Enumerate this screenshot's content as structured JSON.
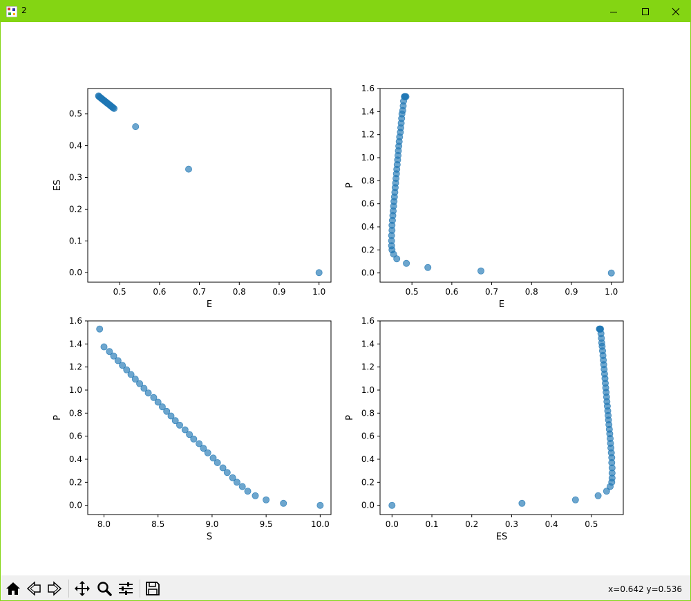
{
  "window": {
    "title": "2",
    "accent_color": "#84d513"
  },
  "toolbar": {
    "items": [
      "home-icon",
      "back-icon",
      "forward-icon",
      "pan-icon",
      "zoom-icon",
      "configure-subplots-icon",
      "save-icon"
    ],
    "coords_text": "x=0.642 y=0.536"
  },
  "chart_data": [
    {
      "type": "scatter",
      "xlabel": "E",
      "ylabel": "ES",
      "xlim": [
        0.42,
        1.03
      ],
      "ylim": [
        -0.03,
        0.58
      ],
      "xticks": [
        "0.5",
        "0.6",
        "0.7",
        "0.8",
        "0.9",
        "1.0"
      ],
      "yticks": [
        "0.0",
        "0.1",
        "0.2",
        "0.3",
        "0.4",
        "0.5"
      ],
      "color": "#1f77b4",
      "x": [
        1.0,
        0.673,
        0.54,
        0.486,
        0.484,
        0.482,
        0.48,
        0.478,
        0.476,
        0.474,
        0.472,
        0.47,
        0.468,
        0.466,
        0.464,
        0.462,
        0.46,
        0.458,
        0.456,
        0.454,
        0.452,
        0.45,
        0.448,
        0.447
      ],
      "y": [
        0.0,
        0.326,
        0.46,
        0.517,
        0.519,
        0.521,
        0.523,
        0.525,
        0.527,
        0.529,
        0.531,
        0.533,
        0.535,
        0.537,
        0.539,
        0.541,
        0.543,
        0.545,
        0.547,
        0.549,
        0.551,
        0.553,
        0.555,
        0.557
      ]
    },
    {
      "type": "scatter",
      "xlabel": "E",
      "ylabel": "P",
      "xlim": [
        0.42,
        1.03
      ],
      "ylim": [
        -0.08,
        1.6
      ],
      "xticks": [
        "0.5",
        "0.6",
        "0.7",
        "0.8",
        "0.9",
        "1.0"
      ],
      "yticks": [
        "0.0",
        "0.2",
        "0.4",
        "0.6",
        "0.8",
        "1.0",
        "1.2",
        "1.4",
        "1.6"
      ],
      "color": "#1f77b4",
      "x": [
        1.0,
        0.673,
        0.54,
        0.486,
        0.462,
        0.454,
        0.45,
        0.449,
        0.449,
        0.449,
        0.45,
        0.45,
        0.451,
        0.452,
        0.453,
        0.454,
        0.455,
        0.456,
        0.457,
        0.458,
        0.459,
        0.46,
        0.461,
        0.462,
        0.463,
        0.464,
        0.465,
        0.466,
        0.467,
        0.468,
        0.469,
        0.471,
        0.472,
        0.473,
        0.474,
        0.475,
        0.477,
        0.478,
        0.479,
        0.481,
        0.482,
        0.483,
        0.485
      ],
      "y": [
        0.0,
        0.017,
        0.047,
        0.083,
        0.123,
        0.163,
        0.2,
        0.236,
        0.28,
        0.325,
        0.37,
        0.413,
        0.455,
        0.497,
        0.538,
        0.58,
        0.62,
        0.66,
        0.7,
        0.74,
        0.78,
        0.82,
        0.86,
        0.9,
        0.94,
        0.98,
        1.02,
        1.06,
        1.1,
        1.14,
        1.18,
        1.22,
        1.26,
        1.3,
        1.34,
        1.38,
        1.41,
        1.45,
        1.49,
        1.53,
        1.53,
        1.53,
        1.53
      ]
    },
    {
      "type": "scatter",
      "xlabel": "S",
      "ylabel": "P",
      "xlim": [
        7.85,
        10.1
      ],
      "ylim": [
        -0.08,
        1.6
      ],
      "xticks": [
        "8.0",
        "8.5",
        "9.0",
        "9.5",
        "10.0"
      ],
      "yticks": [
        "0.0",
        "0.2",
        "0.4",
        "0.6",
        "0.8",
        "1.0",
        "1.2",
        "1.4",
        "1.6"
      ],
      "color": "#1f77b4",
      "x": [
        10.0,
        9.66,
        9.5,
        9.4,
        9.33,
        9.28,
        9.23,
        9.19,
        9.14,
        9.1,
        9.05,
        9.01,
        8.96,
        8.92,
        8.88,
        8.83,
        8.79,
        8.75,
        8.7,
        8.66,
        8.62,
        8.58,
        8.54,
        8.5,
        8.46,
        8.41,
        8.37,
        8.33,
        8.29,
        8.25,
        8.21,
        8.17,
        8.13,
        8.09,
        8.05,
        8.0,
        7.96
      ],
      "y": [
        0.0,
        0.017,
        0.047,
        0.083,
        0.123,
        0.163,
        0.2,
        0.24,
        0.285,
        0.325,
        0.37,
        0.41,
        0.455,
        0.495,
        0.535,
        0.575,
        0.615,
        0.655,
        0.695,
        0.735,
        0.775,
        0.815,
        0.855,
        0.895,
        0.935,
        0.975,
        1.015,
        1.055,
        1.095,
        1.135,
        1.175,
        1.215,
        1.255,
        1.295,
        1.335,
        1.375,
        1.53
      ]
    },
    {
      "type": "scatter",
      "xlabel": "ES",
      "ylabel": "P",
      "xlim": [
        -0.03,
        0.58
      ],
      "ylim": [
        -0.08,
        1.6
      ],
      "xticks": [
        "0.0",
        "0.1",
        "0.2",
        "0.3",
        "0.4",
        "0.5"
      ],
      "yticks": [
        "0.0",
        "0.2",
        "0.4",
        "0.6",
        "0.8",
        "1.0",
        "1.2",
        "1.4",
        "1.6"
      ],
      "color": "#1f77b4",
      "x": [
        0.0,
        0.326,
        0.46,
        0.517,
        0.538,
        0.547,
        0.551,
        0.552,
        0.552,
        0.552,
        0.551,
        0.551,
        0.55,
        0.549,
        0.548,
        0.547,
        0.546,
        0.545,
        0.544,
        0.543,
        0.542,
        0.541,
        0.54,
        0.539,
        0.538,
        0.537,
        0.536,
        0.535,
        0.534,
        0.533,
        0.532,
        0.531,
        0.53,
        0.529,
        0.528,
        0.527,
        0.526,
        0.525,
        0.524,
        0.523,
        0.522,
        0.521,
        0.52
      ],
      "y": [
        0.0,
        0.017,
        0.047,
        0.083,
        0.123,
        0.163,
        0.2,
        0.236,
        0.28,
        0.325,
        0.37,
        0.413,
        0.455,
        0.497,
        0.538,
        0.58,
        0.62,
        0.66,
        0.7,
        0.74,
        0.78,
        0.82,
        0.86,
        0.9,
        0.94,
        0.98,
        1.02,
        1.06,
        1.1,
        1.14,
        1.18,
        1.22,
        1.26,
        1.3,
        1.34,
        1.38,
        1.41,
        1.45,
        1.49,
        1.53,
        1.53,
        1.53,
        1.53
      ]
    }
  ]
}
